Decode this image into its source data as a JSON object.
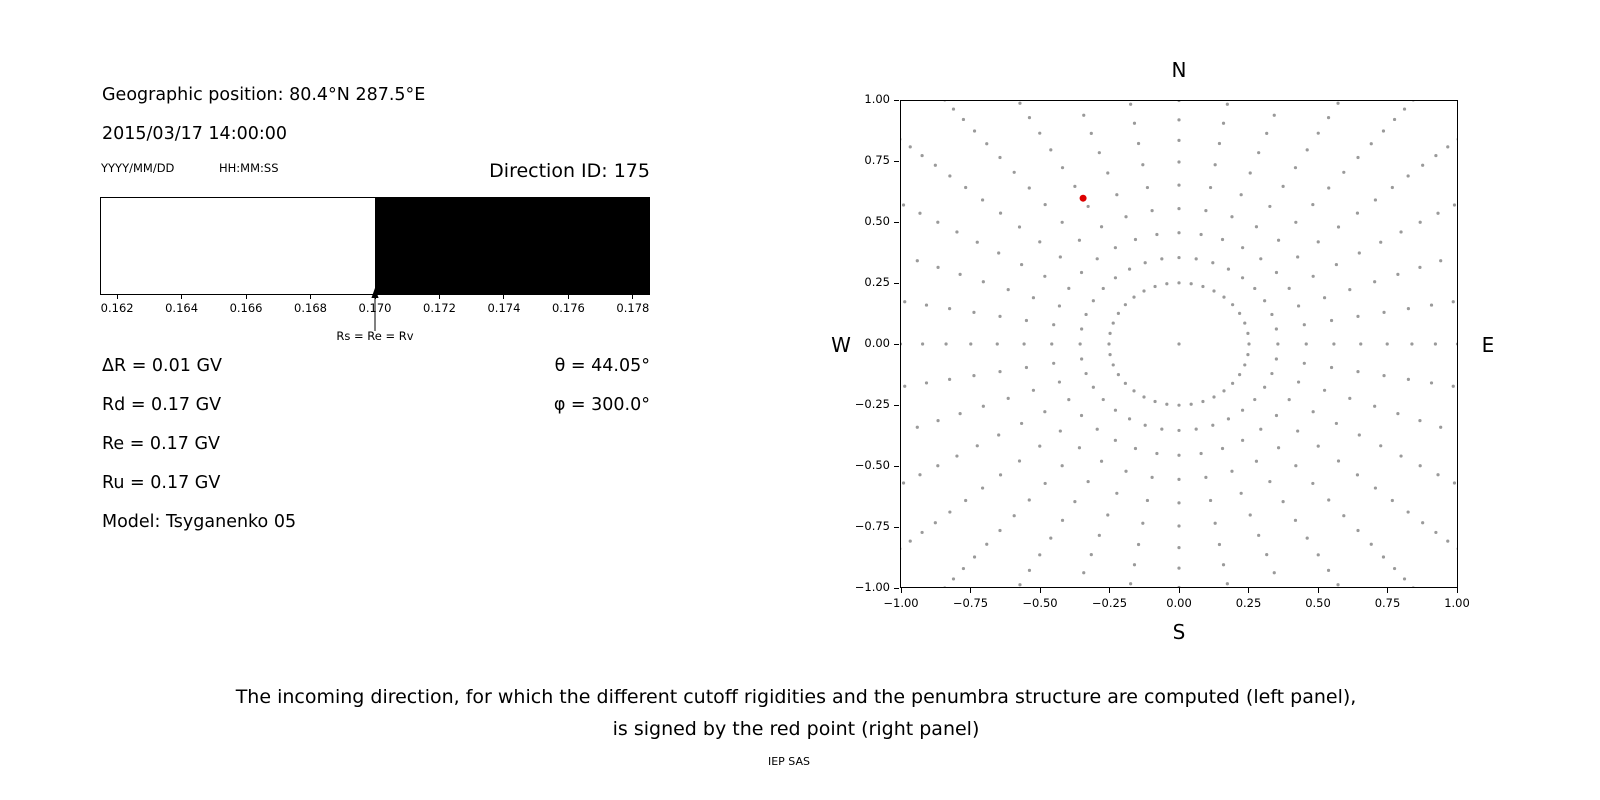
{
  "left_panel": {
    "geo_position": "Geographic position: 80.4°N 287.5°E",
    "datetime": "2015/03/17 14:00:00",
    "date_format": "YYYY/MM/DD",
    "time_format": "HH:MM:SS",
    "direction_id": "Direction ID: 175",
    "delta_r": "ΔR = 0.01 GV",
    "rd": "Rd = 0.17 GV",
    "re": "Re = 0.17 GV",
    "ru": "Ru = 0.17 GV",
    "model": "Model: Tsyganenko 05",
    "theta": "θ = 44.05°",
    "phi": "φ = 300.0°"
  },
  "chart_data": [
    {
      "type": "bar",
      "title": "penumbra structure",
      "xlabel": "",
      "ylabel": "",
      "xlim": [
        0.1615,
        0.1785
      ],
      "x_ticks": [
        0.162,
        0.164,
        0.166,
        0.168,
        0.17,
        0.172,
        0.174,
        0.176,
        0.178
      ],
      "x_tick_labels": [
        "0.162",
        "0.164",
        "0.166",
        "0.168",
        "0.170",
        "0.172",
        "0.174",
        "0.176",
        "0.178"
      ],
      "segments": [
        {
          "from": 0.1615,
          "to": 0.17,
          "color": "#ffffff"
        },
        {
          "from": 0.17,
          "to": 0.1785,
          "color": "#000000"
        }
      ],
      "annotation": {
        "x": 0.17,
        "label": "Rs = Re = Rv"
      }
    },
    {
      "type": "scatter",
      "title": "incoming direction grid",
      "xlim": [
        -1,
        1
      ],
      "ylim": [
        -1,
        1
      ],
      "x_tick_labels": [
        "−1.00",
        "−0.75",
        "−0.50",
        "−0.25",
        "0.00",
        "0.25",
        "0.50",
        "0.75",
        "1.00"
      ],
      "y_tick_labels": [
        "1.00",
        "0.75",
        "0.50",
        "0.25",
        "0.00",
        "−0.25",
        "−0.50",
        "−0.75",
        "−1.00"
      ],
      "compass": {
        "north": "N",
        "south": "S",
        "west": "W",
        "east": "E"
      },
      "grid_dots": {
        "color": "#9a9a9a",
        "dot_radius_px": 1.6,
        "azimuth_start_deg": 0,
        "azimuth_step_deg": 10,
        "azimuth_count": 36,
        "zenith_angles_deg": [
          10,
          14.2,
          18.4,
          22.6,
          26.8,
          31.1,
          35.3,
          39.5,
          43.7,
          47.9,
          52.1,
          56.3,
          60.5,
          64.7,
          68.9,
          73.2,
          77.4,
          81.6,
          85.8,
          90
        ],
        "radius_scale": 1.45,
        "include_center_dot": true
      },
      "red_point": {
        "x": -0.345,
        "y": 0.6,
        "color": "#dd0000",
        "radius_px": 3.5
      }
    }
  ],
  "caption": {
    "line1": "The incoming direction, for which the different cutoff rigidities and the penumbra structure are computed (left panel),",
    "line2": "is signed by the red point (right panel)"
  },
  "footer": "IEP SAS"
}
